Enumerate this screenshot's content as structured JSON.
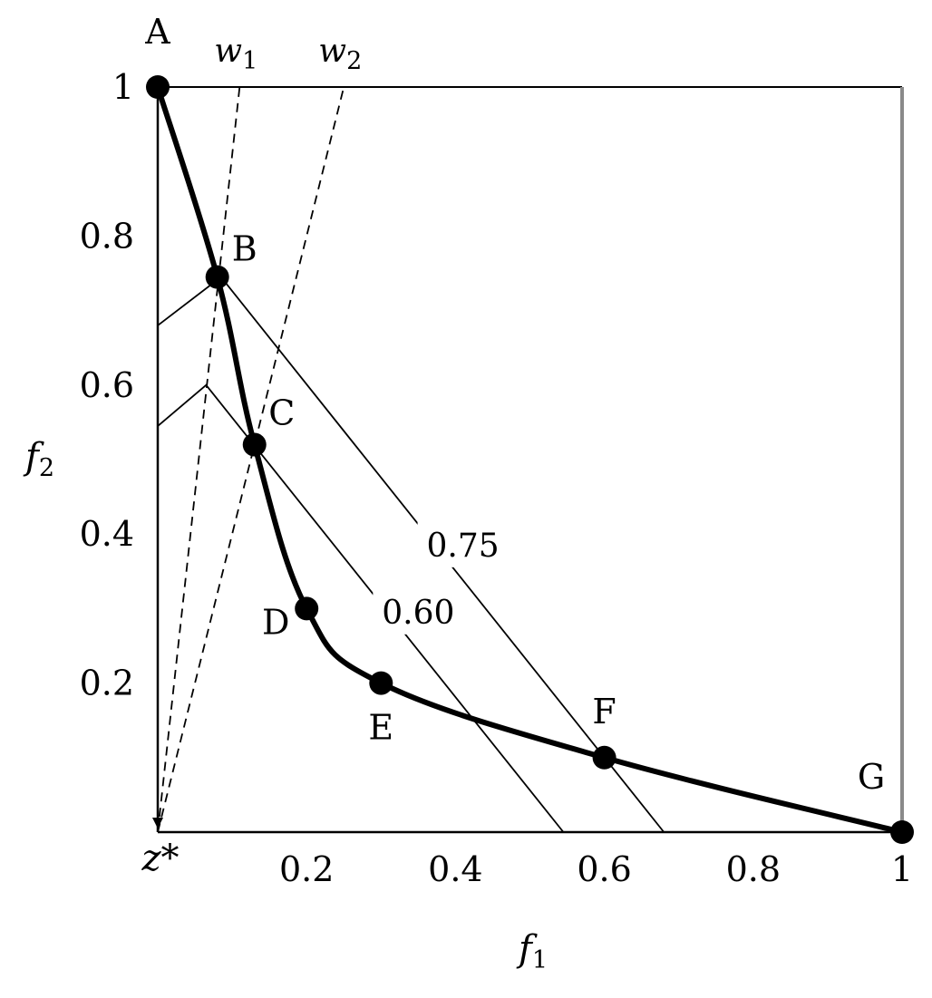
{
  "chart_data": {
    "type": "line",
    "xlabel": "f",
    "xlabel_sub": "1",
    "ylabel": "f",
    "ylabel_sub": "2",
    "origin_label": "z*",
    "xlim": [
      0,
      1
    ],
    "ylim": [
      0,
      1
    ],
    "x_ticks": [
      {
        "value": 0.2,
        "label": "0.2"
      },
      {
        "value": 0.4,
        "label": "0.4"
      },
      {
        "value": 0.6,
        "label": "0.6"
      },
      {
        "value": 0.8,
        "label": "0.8"
      },
      {
        "value": 1.0,
        "label": "1"
      }
    ],
    "y_ticks": [
      {
        "value": 0.2,
        "label": "0.2"
      },
      {
        "value": 0.4,
        "label": "0.4"
      },
      {
        "value": 0.6,
        "label": "0.6"
      },
      {
        "value": 0.8,
        "label": "0.8"
      },
      {
        "value": 1.0,
        "label": "1"
      }
    ],
    "grid": false,
    "frame": true,
    "pareto_front": {
      "points": [
        {
          "label": "A",
          "x": 0.0,
          "y": 1.0
        },
        {
          "label": "B",
          "x": 0.08,
          "y": 0.745
        },
        {
          "label": "C",
          "x": 0.13,
          "y": 0.52
        },
        {
          "label": "D",
          "x": 0.2,
          "y": 0.3
        },
        {
          "label": "E",
          "x": 0.3,
          "y": 0.2
        },
        {
          "label": "F",
          "x": 0.6,
          "y": 0.1
        },
        {
          "label": "G",
          "x": 1.0,
          "y": 0.0
        }
      ]
    },
    "weight_rays": [
      {
        "name": "w",
        "sub": "1",
        "from": [
          0.0,
          0.0
        ],
        "to": [
          0.11,
          1.0
        ]
      },
      {
        "name": "w",
        "sub": "2",
        "from": [
          0.0,
          0.0
        ],
        "to": [
          0.25,
          1.0
        ]
      }
    ],
    "contours": [
      {
        "label": "0.75",
        "points": [
          [
            0.0,
            0.68
          ],
          [
            0.085,
            0.745
          ],
          [
            0.68,
            0.0
          ]
        ],
        "label_at": [
          0.41,
          0.37
        ]
      },
      {
        "label": "0.60",
        "points": [
          [
            0.0,
            0.545
          ],
          [
            0.065,
            0.6
          ],
          [
            0.545,
            0.0
          ]
        ],
        "label_at": [
          0.35,
          0.28
        ]
      }
    ]
  }
}
